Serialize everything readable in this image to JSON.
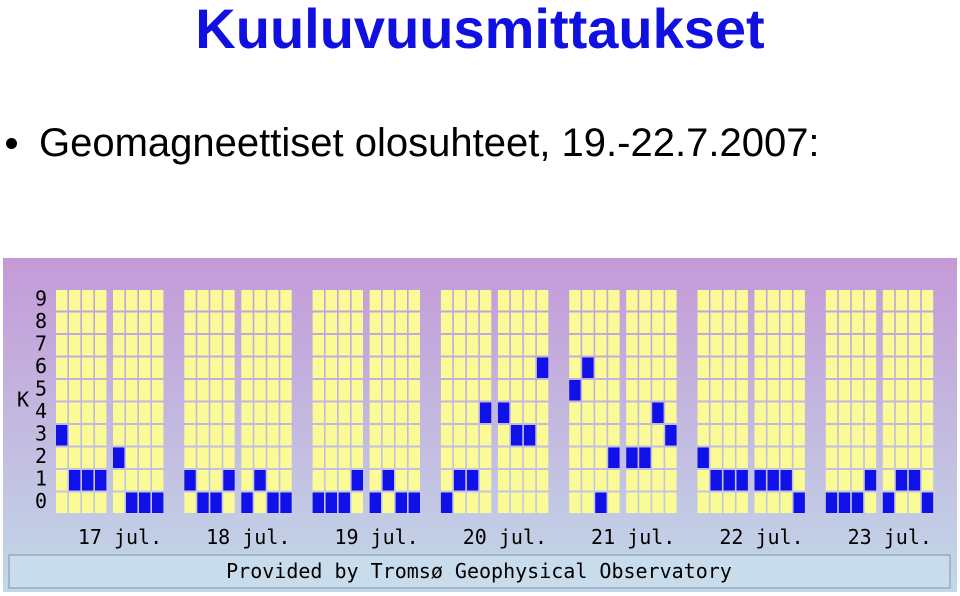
{
  "page": {
    "title": "Kuuluvuusmittaukset",
    "bullet": "Geomagneettiset olosuhteet, 19.-22.7.2007:"
  },
  "chart_data": {
    "type": "bar",
    "title": "",
    "ylabel": "K",
    "ylim": [
      0,
      9
    ],
    "yticks": [
      "0",
      "1",
      "2",
      "3",
      "4",
      "5",
      "6",
      "7",
      "8",
      "9"
    ],
    "categories": [
      "17 jul.",
      "18 jul.",
      "19 jul.",
      "20 jul.",
      "21 jul.",
      "22 jul.",
      "23 jul."
    ],
    "series": [
      {
        "values": [
          [
            3,
            1,
            1,
            1,
            2,
            0,
            0,
            0
          ],
          [
            1,
            0,
            0,
            1,
            0,
            1,
            0,
            0
          ],
          [
            0,
            0,
            0,
            1,
            0,
            1,
            0,
            0
          ],
          [
            0,
            1,
            1,
            4,
            4,
            3,
            3,
            6
          ],
          [
            5,
            6,
            0,
            2,
            2,
            2,
            4,
            3
          ],
          [
            2,
            1,
            1,
            1,
            1,
            1,
            1,
            0
          ],
          [
            0,
            0,
            0,
            1,
            0,
            1,
            1,
            0
          ]
        ]
      }
    ],
    "credit": "Provided by Tromsø Geophysical Observatory",
    "colors": {
      "background_top": "#c49ad8",
      "background_bottom": "#c2d8e8",
      "cell": "#fafa96",
      "bar": "#1010e8",
      "grid_line": "#d8d0d8",
      "text": "#000000"
    }
  }
}
